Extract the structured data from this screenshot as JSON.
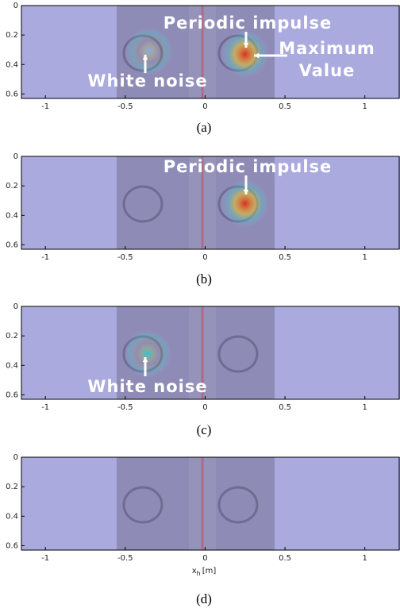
{
  "chart_data": [
    {
      "type": "heatmap",
      "caption": "(a)",
      "xlim": [
        -1.15,
        1.22
      ],
      "ylim": [
        0,
        0.63
      ],
      "xticks": [
        -1,
        -0.5,
        0,
        0.5,
        1
      ],
      "yticks": [
        0,
        0.2,
        0.4,
        0.6
      ],
      "sources": [
        {
          "x": 0.25,
          "y": 0.33,
          "color": "#e02818"
        },
        {
          "x": -0.35,
          "y": 0.31,
          "color": "#7fb0f0"
        }
      ],
      "annotations": [
        {
          "lines": [
            "Periodic impulse"
          ]
        },
        {
          "lines": [
            "Maximum",
            "Value"
          ]
        },
        {
          "lines": [
            "White noise"
          ]
        }
      ]
    },
    {
      "type": "heatmap",
      "caption": "(b)",
      "xlim": [
        -1.15,
        1.22
      ],
      "ylim": [
        0,
        0.63
      ],
      "xticks": [
        -1,
        -0.5,
        0,
        0.5,
        1
      ],
      "yticks": [
        0,
        0.2,
        0.4,
        0.6
      ],
      "sources": [
        {
          "x": 0.25,
          "y": 0.32,
          "color": "#e02818"
        }
      ],
      "annotations": [
        {
          "lines": [
            "Periodic impulse"
          ]
        }
      ]
    },
    {
      "type": "heatmap",
      "caption": "(c)",
      "xlim": [
        -1.15,
        1.22
      ],
      "ylim": [
        0,
        0.63
      ],
      "xticks": [
        -1,
        -0.5,
        0,
        0.5,
        1
      ],
      "yticks": [
        0,
        0.2,
        0.4,
        0.6
      ],
      "sources": [
        {
          "x": -0.36,
          "y": 0.32,
          "color": "#20c8e8"
        }
      ],
      "annotations": [
        {
          "lines": [
            "White noise"
          ]
        }
      ]
    },
    {
      "type": "heatmap",
      "caption": "(d)",
      "xlim": [
        -1.15,
        1.22
      ],
      "ylim": [
        0,
        0.63
      ],
      "xticks": [
        -1,
        -0.5,
        0,
        0.5,
        1
      ],
      "yticks": [
        0,
        0.2,
        0.4,
        0.6
      ],
      "sources": [],
      "annotations": [],
      "xlabel": {
        "symbol": "x",
        "sub": "h",
        "unit": "[m]"
      }
    }
  ]
}
